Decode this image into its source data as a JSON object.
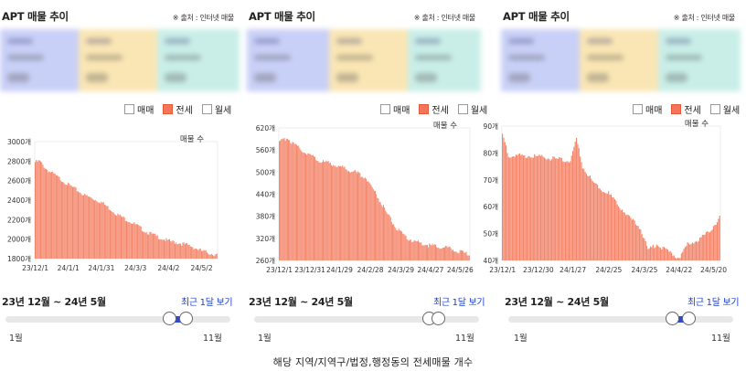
{
  "caption": "해당 지역/지역구/법정,행정동의 전세매물 개수",
  "panels": [
    {
      "title": "APT 매물 추이",
      "source": "※ 출처 : 인터넷 매물",
      "legend": [
        "매매",
        "전세",
        "월세"
      ],
      "period": "23년 12월 ~ 24년 5월",
      "recent": "최근 1달 보기",
      "slider_min": "1월",
      "slider_max": "11월",
      "slider_range_months": [
        5,
        6
      ]
    },
    {
      "title": "APT 매물 추이",
      "source": "※ 출처 : 인터넷 매물",
      "legend": [
        "매매",
        "전세",
        "월세"
      ],
      "period": "23년 12월 ~ 24년 5월",
      "recent": "최근 1달 보기",
      "slider_min": "1월",
      "slider_max": "11월",
      "slider_range_months": [
        5,
        6
      ]
    },
    {
      "title": "APT 매물 추이",
      "source": "※ 출처 : 인터넷 매물",
      "legend": [
        "매매",
        "전세",
        "월세"
      ],
      "period": "23년 12월 ~ 24년 5월",
      "recent": "최근 1달 보기",
      "slider_min": "1월",
      "slider_max": "11월",
      "slider_range_months": [
        5,
        6
      ]
    }
  ],
  "chart_data": [
    {
      "type": "bar",
      "series_label": "매물 수",
      "color": "#f4856a",
      "ylim": [
        1800,
        3000
      ],
      "yticks": [
        1800,
        2000,
        2200,
        2400,
        2600,
        2800,
        3000
      ],
      "ytick_labels": [
        "1800개",
        "2000개",
        "2200개",
        "2400개",
        "2600개",
        "2800개",
        "3000개"
      ],
      "x_tick_labels": [
        "23/12/1",
        "24/1/1",
        "24/1/31",
        "24/3/3",
        "24/4/2",
        "24/5/2"
      ],
      "x_tick_index": [
        0,
        30,
        60,
        91,
        121,
        151
      ],
      "anchors": [
        [
          0,
          2790
        ],
        [
          4,
          2800
        ],
        [
          10,
          2720
        ],
        [
          20,
          2640
        ],
        [
          30,
          2560
        ],
        [
          45,
          2450
        ],
        [
          60,
          2380
        ],
        [
          75,
          2250
        ],
        [
          91,
          2150
        ],
        [
          100,
          2080
        ],
        [
          110,
          2030
        ],
        [
          121,
          1980
        ],
        [
          131,
          1960
        ],
        [
          141,
          1930
        ],
        [
          151,
          1880
        ],
        [
          160,
          1850
        ],
        [
          165,
          1840
        ]
      ],
      "n": 166
    },
    {
      "type": "bar",
      "series_label": "매물 수",
      "color": "#f4856a",
      "ylim": [
        260,
        620
      ],
      "yticks": [
        260,
        320,
        380,
        440,
        500,
        560,
        620
      ],
      "ytick_labels": [
        "260개",
        "320개",
        "380개",
        "440개",
        "500개",
        "560개",
        "620개"
      ],
      "x_tick_labels": [
        "23/12/1",
        "23/12/31",
        "24/1/29",
        "24/2/28",
        "24/3/29",
        "24/4/27",
        "24/5/26"
      ],
      "x_tick_index": [
        0,
        30,
        59,
        89,
        119,
        148,
        177
      ],
      "anchors": [
        [
          0,
          580
        ],
        [
          8,
          595
        ],
        [
          14,
          575
        ],
        [
          25,
          555
        ],
        [
          40,
          530
        ],
        [
          55,
          520
        ],
        [
          70,
          505
        ],
        [
          85,
          485
        ],
        [
          95,
          440
        ],
        [
          105,
          390
        ],
        [
          115,
          345
        ],
        [
          125,
          320
        ],
        [
          135,
          310
        ],
        [
          148,
          300
        ],
        [
          160,
          296
        ],
        [
          170,
          290
        ],
        [
          180,
          280
        ],
        [
          186,
          275
        ]
      ],
      "n": 187
    },
    {
      "type": "bar",
      "series_label": "매물 수",
      "color": "#f4856a",
      "ylim": [
        40,
        90
      ],
      "yticks": [
        40,
        50,
        60,
        70,
        80,
        90
      ],
      "ytick_labels": [
        "40개",
        "50개",
        "60개",
        "70개",
        "80개",
        "90개"
      ],
      "x_tick_labels": [
        "23/12/1",
        "23/12/30",
        "24/1/27",
        "24/2/25",
        "24/3/25",
        "24/4/22",
        "24/5/20"
      ],
      "x_tick_index": [
        0,
        29,
        57,
        86,
        115,
        143,
        171
      ],
      "anchors": [
        [
          0,
          87
        ],
        [
          5,
          79
        ],
        [
          20,
          79
        ],
        [
          40,
          78
        ],
        [
          55,
          77
        ],
        [
          60,
          85
        ],
        [
          65,
          75
        ],
        [
          75,
          68
        ],
        [
          86,
          65
        ],
        [
          95,
          60
        ],
        [
          105,
          55
        ],
        [
          112,
          52
        ],
        [
          118,
          44
        ],
        [
          125,
          46
        ],
        [
          135,
          43
        ],
        [
          143,
          41
        ],
        [
          150,
          46
        ],
        [
          160,
          48
        ],
        [
          168,
          51
        ],
        [
          176,
          56
        ]
      ],
      "n": 177
    }
  ]
}
